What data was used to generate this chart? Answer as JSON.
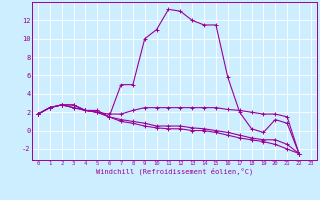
{
  "xlabel": "Windchill (Refroidissement éolien,°C)",
  "background_color": "#cceeff",
  "line_color": "#990099",
  "xlim": [
    -0.5,
    23.5
  ],
  "ylim": [
    -3.2,
    14.0
  ],
  "xticks": [
    0,
    1,
    2,
    3,
    4,
    5,
    6,
    7,
    8,
    9,
    10,
    11,
    12,
    13,
    14,
    15,
    16,
    17,
    18,
    19,
    20,
    21,
    22,
    23
  ],
  "yticks": [
    -2,
    0,
    2,
    4,
    6,
    8,
    10,
    12
  ],
  "grid_color": "#ffffff",
  "series": [
    [
      [
        0,
        1,
        2,
        3,
        4,
        5,
        6,
        7,
        8,
        9,
        10,
        11,
        12,
        13,
        14,
        15,
        16,
        17,
        18,
        19,
        20,
        21,
        22
      ],
      [
        1.8,
        2.5,
        2.8,
        2.8,
        2.2,
        2.2,
        1.5,
        5.0,
        5.0,
        10.0,
        11.0,
        13.2,
        13.0,
        12.0,
        11.5,
        11.5,
        5.8,
        2.0,
        0.2,
        -0.2,
        1.2,
        0.8,
        -2.5
      ]
    ],
    [
      [
        0,
        1,
        2,
        3,
        4,
        5,
        6,
        7,
        8,
        9,
        10,
        11,
        12,
        13,
        14,
        15,
        16,
        17,
        18,
        19,
        20,
        21,
        22
      ],
      [
        1.8,
        2.5,
        2.8,
        2.8,
        2.2,
        2.0,
        1.8,
        1.8,
        2.2,
        2.5,
        2.5,
        2.5,
        2.5,
        2.5,
        2.5,
        2.5,
        2.3,
        2.2,
        2.0,
        1.8,
        1.8,
        1.5,
        -2.5
      ]
    ],
    [
      [
        0,
        1,
        2,
        3,
        4,
        5,
        6,
        7,
        8,
        9,
        10,
        11,
        12,
        13,
        14,
        15,
        16,
        17,
        18,
        19,
        20,
        21,
        22
      ],
      [
        1.8,
        2.5,
        2.8,
        2.5,
        2.2,
        2.0,
        1.5,
        1.2,
        1.0,
        0.8,
        0.5,
        0.5,
        0.5,
        0.3,
        0.2,
        0.0,
        -0.2,
        -0.5,
        -0.8,
        -1.0,
        -1.0,
        -1.5,
        -2.5
      ]
    ],
    [
      [
        0,
        1,
        2,
        3,
        4,
        5,
        6,
        7,
        8,
        9,
        10,
        11,
        12,
        13,
        14,
        15,
        16,
        17,
        18,
        19,
        20,
        21,
        22
      ],
      [
        1.8,
        2.5,
        2.8,
        2.5,
        2.2,
        2.0,
        1.5,
        1.0,
        0.8,
        0.5,
        0.3,
        0.2,
        0.2,
        0.0,
        0.0,
        -0.2,
        -0.5,
        -0.8,
        -1.0,
        -1.2,
        -1.5,
        -2.0,
        -2.5
      ]
    ]
  ]
}
